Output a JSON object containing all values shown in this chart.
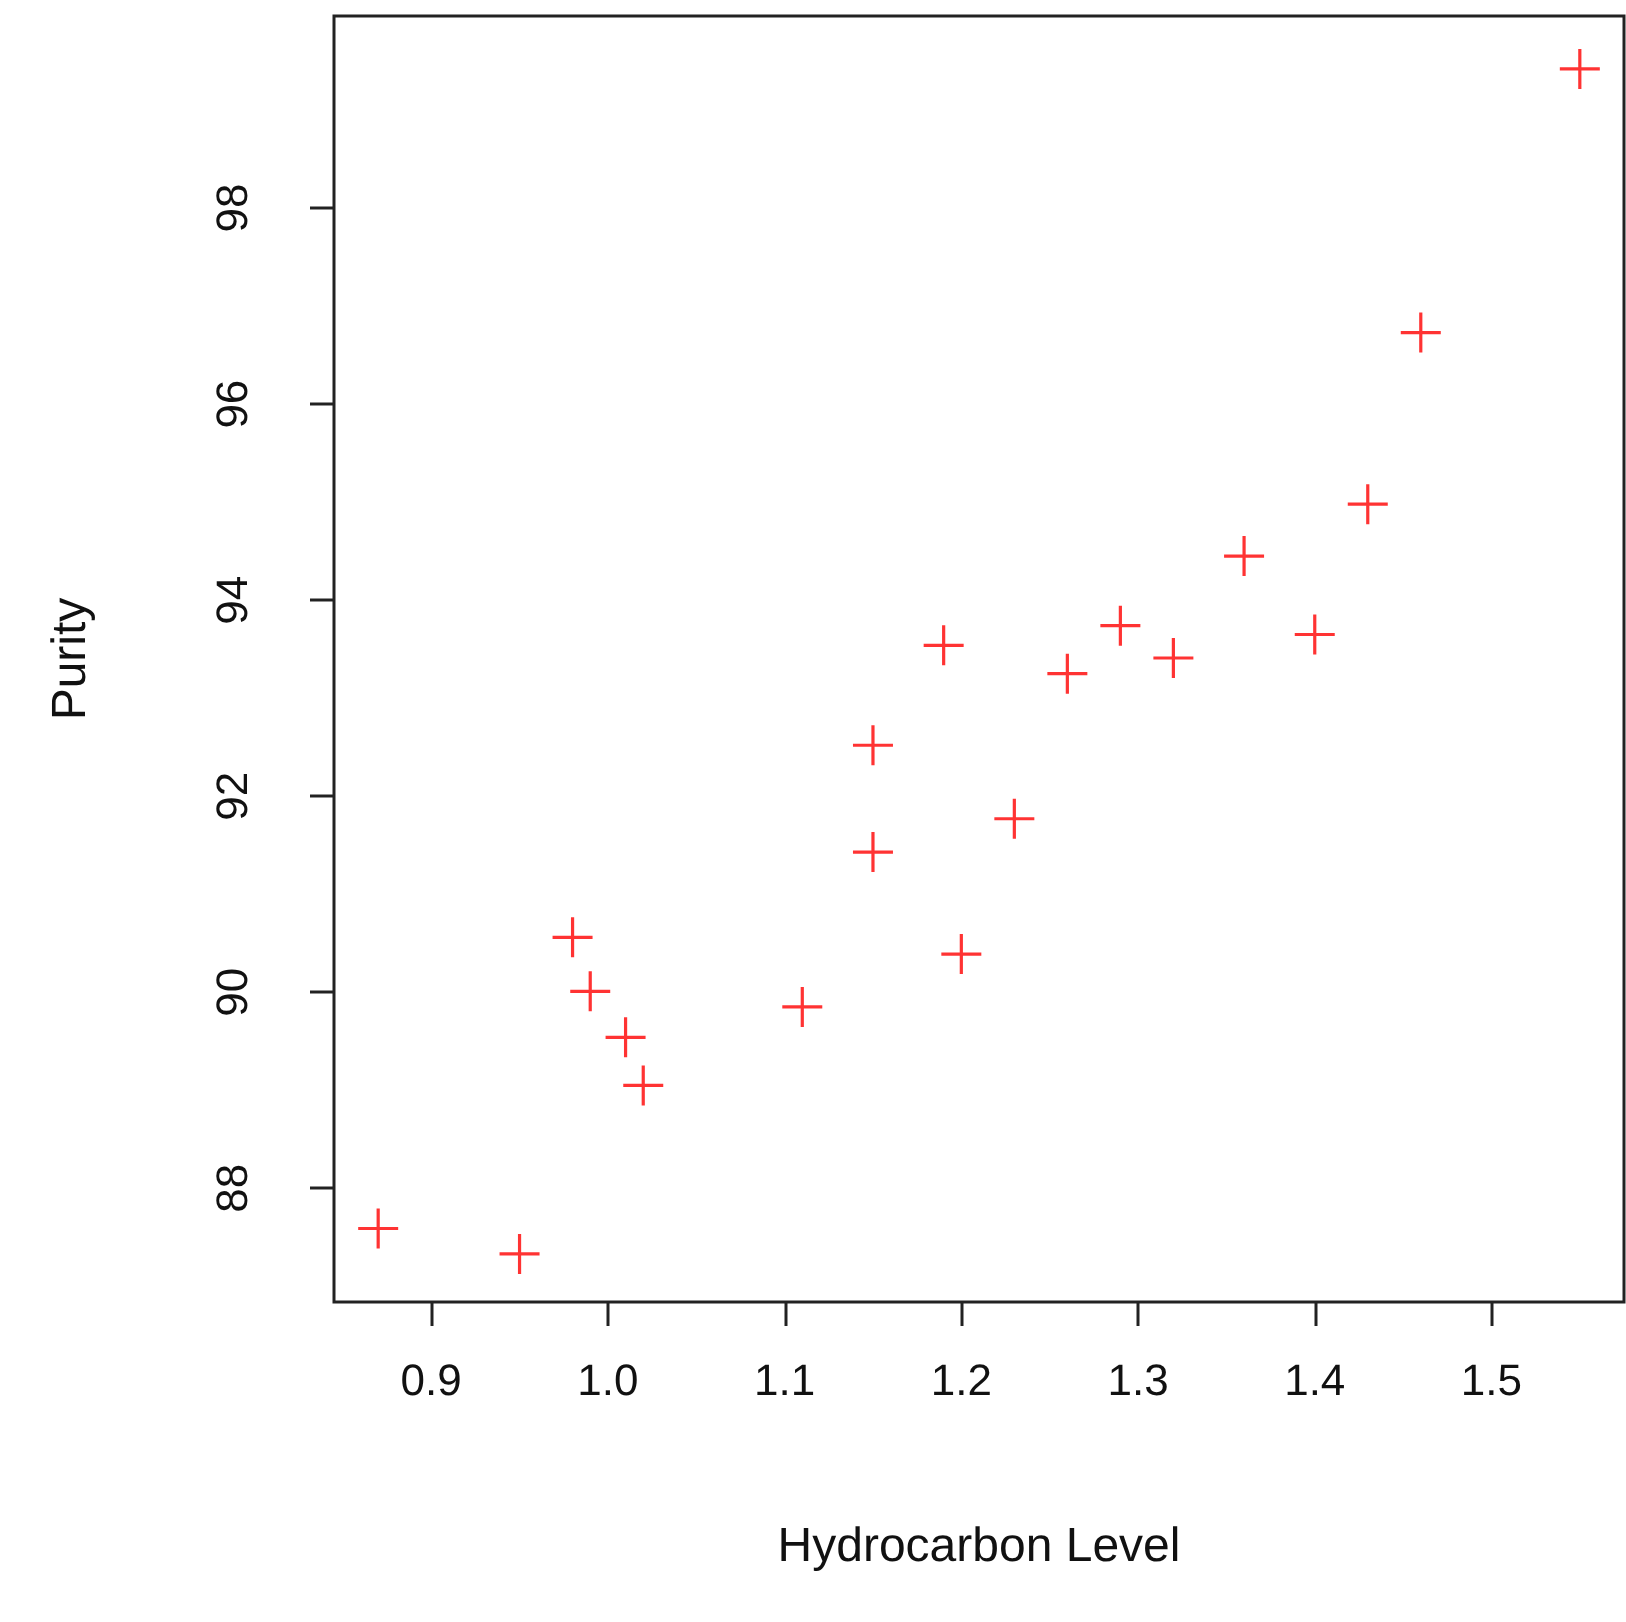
{
  "chart_data": {
    "type": "scatter",
    "xlabel": "Hydrocarbon Level",
    "ylabel": "Purity",
    "x": [
      0.99,
      1.02,
      1.15,
      1.29,
      1.46,
      1.36,
      0.87,
      1.23,
      1.55,
      1.4,
      1.19,
      1.15,
      0.98,
      1.01,
      1.11,
      1.2,
      1.26,
      1.32,
      1.43,
      0.95
    ],
    "series": [
      {
        "color": "#ff0000",
        "values": [
          90.01,
          89.05,
          91.43,
          93.74,
          96.73,
          94.45,
          87.59,
          91.77,
          99.42,
          93.65,
          93.54,
          92.52,
          90.56,
          89.54,
          89.85,
          90.39,
          93.25,
          93.41,
          94.98,
          87.33
        ]
      }
    ],
    "xlim": [
      0.845,
      1.575
    ],
    "ylim": [
      86.84,
      99.96
    ],
    "xticks": [
      0.9,
      {
        "value": 1,
        "label": "1.0"
      },
      1.1,
      1.2,
      1.3,
      1.4,
      {
        "value": 1.5,
        "label": "1.5"
      }
    ],
    "yticks": [
      88,
      90,
      92,
      94,
      96,
      98
    ],
    "grid": false,
    "marker": "cross"
  }
}
